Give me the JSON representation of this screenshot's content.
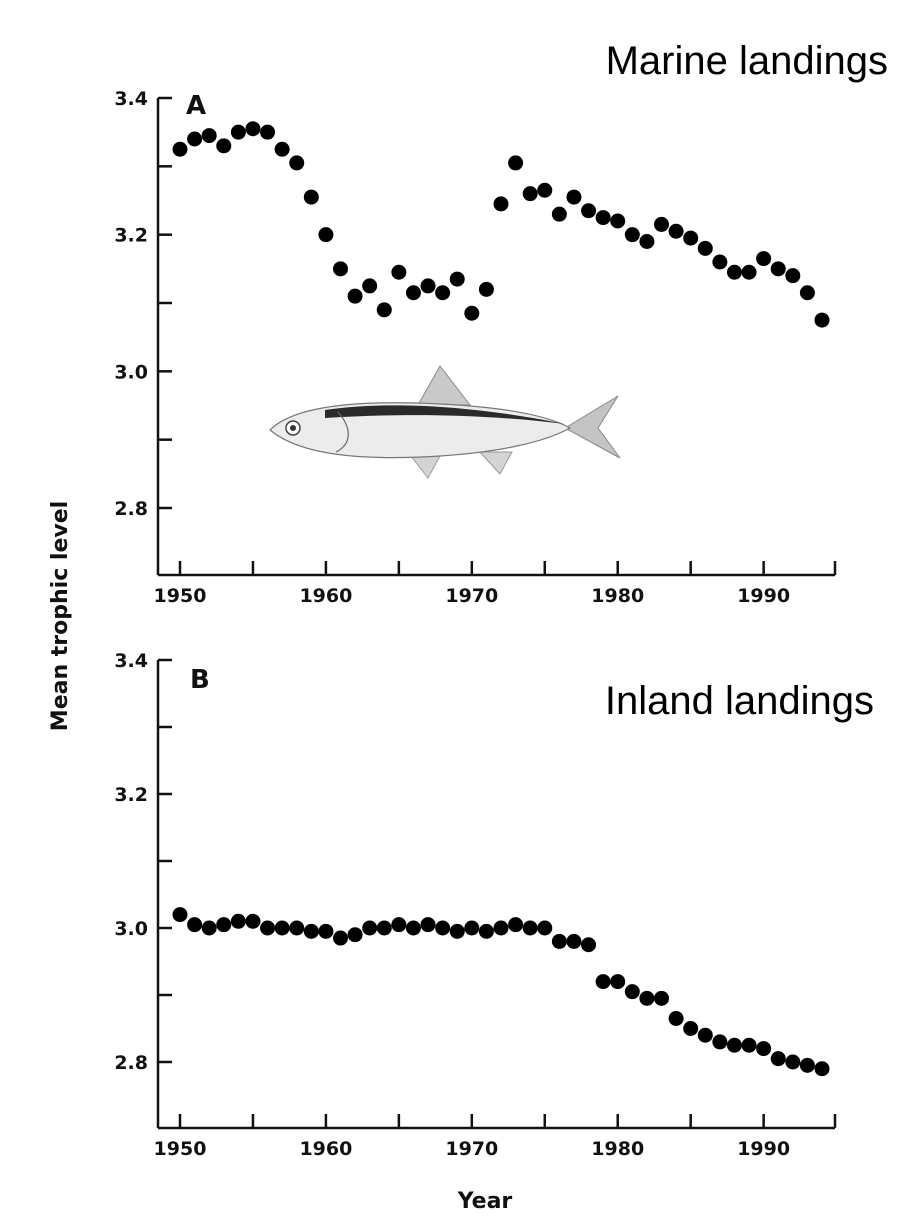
{
  "figure": {
    "ylabel": "Mean trophic level",
    "xlabel": "Year",
    "fish_icon": "anchovy-fish-illustration"
  },
  "chart_data": [
    {
      "type": "scatter",
      "panel": "A",
      "title": "Marine landings",
      "xlim": [
        1950,
        1994
      ],
      "ylim": [
        2.7,
        3.4
      ],
      "x_ticks": [
        1950,
        1960,
        1970,
        1980,
        1990
      ],
      "y_tick_labels": [
        2.8,
        3.0,
        3.2,
        3.4
      ],
      "grid": false,
      "x": [
        1950,
        1951,
        1952,
        1953,
        1954,
        1955,
        1956,
        1957,
        1958,
        1959,
        1960,
        1961,
        1962,
        1963,
        1964,
        1965,
        1966,
        1967,
        1968,
        1969,
        1970,
        1971,
        1972,
        1973,
        1974,
        1975,
        1976,
        1977,
        1978,
        1979,
        1980,
        1981,
        1982,
        1983,
        1984,
        1985,
        1986,
        1987,
        1988,
        1989,
        1990,
        1991,
        1992,
        1993,
        1994
      ],
      "y": [
        3.325,
        3.34,
        3.345,
        3.33,
        3.35,
        3.355,
        3.35,
        3.325,
        3.305,
        3.255,
        3.2,
        3.15,
        3.11,
        3.125,
        3.09,
        3.145,
        3.115,
        3.125,
        3.115,
        3.135,
        3.085,
        3.12,
        3.245,
        3.305,
        3.26,
        3.265,
        3.23,
        3.255,
        3.235,
        3.225,
        3.22,
        3.2,
        3.19,
        3.215,
        3.205,
        3.195,
        3.18,
        3.16,
        3.145,
        3.145,
        3.165,
        3.15,
        3.14,
        3.115,
        3.075
      ]
    },
    {
      "type": "scatter",
      "panel": "B",
      "title": "Inland landings",
      "xlim": [
        1950,
        1994
      ],
      "ylim": [
        2.7,
        3.4
      ],
      "x_ticks": [
        1950,
        1960,
        1970,
        1980,
        1990
      ],
      "y_tick_labels": [
        2.8,
        3.0,
        3.2,
        3.4
      ],
      "grid": false,
      "x": [
        1950,
        1951,
        1952,
        1953,
        1954,
        1955,
        1956,
        1957,
        1958,
        1959,
        1960,
        1961,
        1962,
        1963,
        1964,
        1965,
        1966,
        1967,
        1968,
        1969,
        1970,
        1971,
        1972,
        1973,
        1974,
        1975,
        1976,
        1977,
        1978,
        1979,
        1980,
        1981,
        1982,
        1983,
        1984,
        1985,
        1986,
        1987,
        1988,
        1989,
        1990,
        1991,
        1992,
        1993,
        1994
      ],
      "y": [
        3.02,
        3.005,
        3.0,
        3.005,
        3.01,
        3.01,
        3.0,
        3.0,
        3.0,
        2.995,
        2.995,
        2.985,
        2.99,
        3.0,
        3.0,
        3.005,
        3.0,
        3.005,
        3.0,
        2.995,
        3.0,
        2.995,
        3.0,
        3.005,
        3.0,
        3.0,
        2.98,
        2.98,
        2.975,
        2.92,
        2.92,
        2.905,
        2.895,
        2.895,
        2.865,
        2.85,
        2.84,
        2.83,
        2.825,
        2.825,
        2.82,
        2.805,
        2.8,
        2.795,
        2.79
      ]
    }
  ]
}
